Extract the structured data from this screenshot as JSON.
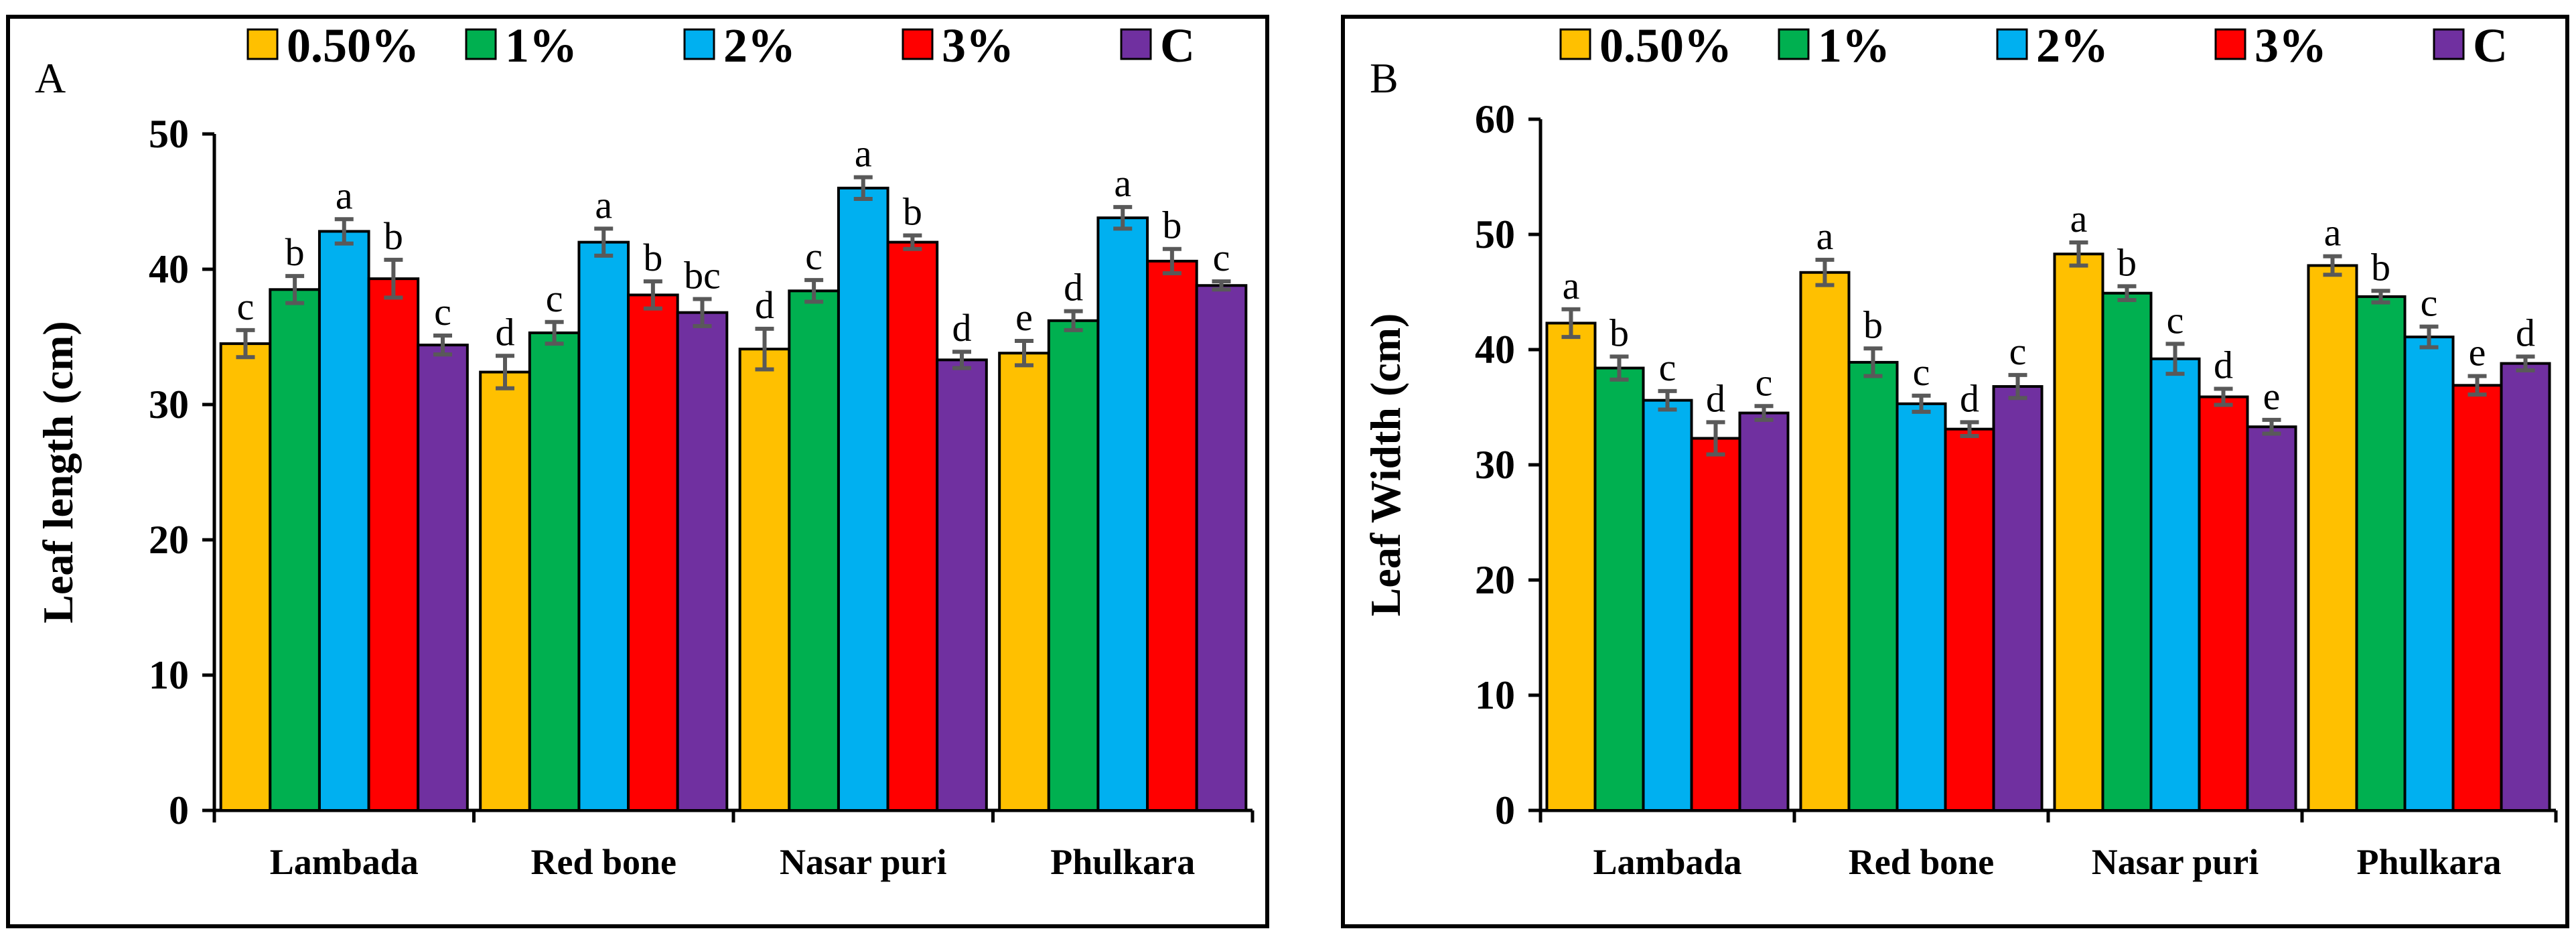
{
  "chart_data": [
    {
      "type": "bar",
      "panel": "A",
      "ylabel": "Leaf  length (cm)",
      "ylim": [
        0,
        50
      ],
      "yticks": [
        0,
        10,
        20,
        30,
        40,
        50
      ],
      "categories": [
        "Lambada",
        "Red bone",
        "Nasar puri",
        "Phulkara"
      ],
      "series": [
        {
          "name": "0.50%",
          "color": "#FFC000",
          "values": [
            34.5,
            32.4,
            34.1,
            33.8
          ],
          "errors": [
            1.0,
            1.2,
            1.5,
            0.9
          ],
          "letters": [
            "c",
            "d",
            "d",
            "e"
          ]
        },
        {
          "name": "1%",
          "color": "#00B050",
          "values": [
            38.5,
            35.3,
            38.4,
            36.2
          ],
          "errors": [
            1.0,
            0.8,
            0.8,
            0.7
          ],
          "letters": [
            "b",
            "c",
            "c",
            "d"
          ]
        },
        {
          "name": "2%",
          "color": "#00B0F0",
          "values": [
            42.8,
            42.0,
            46.0,
            43.8
          ],
          "errors": [
            0.9,
            1.0,
            0.8,
            0.8
          ],
          "letters": [
            "a",
            "a",
            "a",
            "a"
          ]
        },
        {
          "name": "3%",
          "color": "#FF0000",
          "values": [
            39.3,
            38.1,
            42.0,
            40.6
          ],
          "errors": [
            1.4,
            1.0,
            0.5,
            0.9
          ],
          "letters": [
            "b",
            "b",
            "b",
            "b"
          ]
        },
        {
          "name": "C",
          "color": "#7030A0",
          "values": [
            34.4,
            36.8,
            33.3,
            38.8
          ],
          "errors": [
            0.7,
            1.0,
            0.6,
            0.3
          ],
          "letters": [
            "c",
            "bc",
            "d",
            "c"
          ]
        }
      ]
    },
    {
      "type": "bar",
      "panel": "B",
      "ylabel": "Leaf Width (cm)",
      "ylim": [
        0,
        60
      ],
      "yticks": [
        0,
        10,
        20,
        30,
        40,
        50,
        60
      ],
      "categories": [
        "Lambada",
        "Red bone",
        "Nasar puri",
        "Phulkara"
      ],
      "series": [
        {
          "name": "0.50%",
          "color": "#FFC000",
          "values": [
            42.3,
            46.7,
            48.3,
            47.3
          ],
          "errors": [
            1.2,
            1.1,
            1.0,
            0.8
          ],
          "letters": [
            "a",
            "a",
            "a",
            "a"
          ]
        },
        {
          "name": "1%",
          "color": "#00B050",
          "values": [
            38.4,
            38.9,
            44.9,
            44.6
          ],
          "errors": [
            1.0,
            1.2,
            0.6,
            0.5
          ],
          "letters": [
            "b",
            "b",
            "b",
            "b"
          ]
        },
        {
          "name": "2%",
          "color": "#00B0F0",
          "values": [
            35.6,
            35.3,
            39.2,
            41.1
          ],
          "errors": [
            0.8,
            0.7,
            1.3,
            0.9
          ],
          "letters": [
            "c",
            "c",
            "c",
            "c"
          ]
        },
        {
          "name": "3%",
          "color": "#FF0000",
          "values": [
            32.3,
            33.1,
            35.9,
            36.9
          ],
          "errors": [
            1.4,
            0.6,
            0.7,
            0.8
          ],
          "letters": [
            "d",
            "d",
            "d",
            "e"
          ]
        },
        {
          "name": "C",
          "color": "#7030A0",
          "values": [
            34.5,
            36.8,
            33.3,
            38.8
          ],
          "errors": [
            0.6,
            1.0,
            0.6,
            0.6
          ],
          "letters": [
            "c",
            "c",
            "e",
            "d"
          ]
        }
      ]
    }
  ]
}
